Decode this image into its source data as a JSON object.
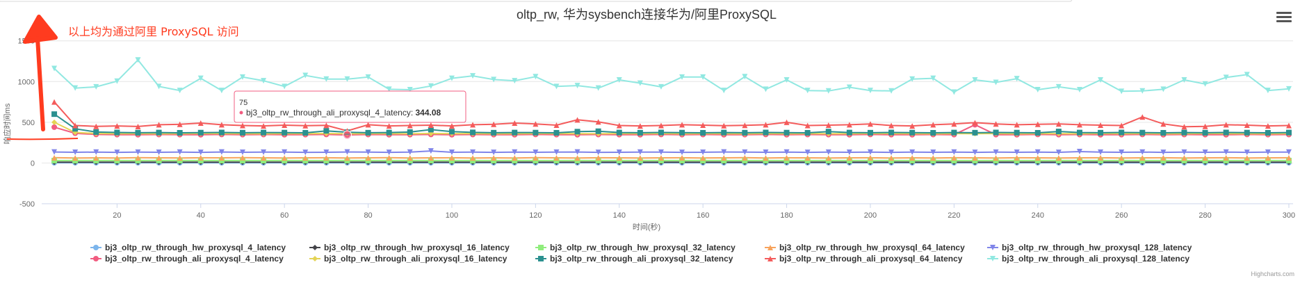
{
  "page": {
    "annotation_text": "以上均为通过阿里 ProxySQL 访问",
    "credits": "Highcharts.com",
    "menu_icon": "hamburger-menu-icon"
  },
  "chart_data": {
    "type": "line",
    "title": "oltp_rw, 华为sysbench连接华为/阿里ProxySQL",
    "xlabel": "时间(秒)",
    "ylabel": "响应时间ms",
    "xlim": [
      2,
      301
    ],
    "ylim": [
      -500,
      1600
    ],
    "x_ticks": [
      "20",
      "40",
      "60",
      "80",
      "100",
      "120",
      "140",
      "160",
      "180",
      "200",
      "220",
      "240",
      "260",
      "280",
      "300"
    ],
    "y_ticks": [
      "-500",
      "0",
      "500",
      "1000",
      "1500"
    ],
    "grid": true,
    "legend_position": "bottom",
    "tooltip": {
      "x_label": "75",
      "series": "bj3_oltp_rw_through_ali_proxysql_4_latency",
      "value_text": "344.08",
      "x": 75,
      "y": 344.08,
      "color": "#f15c80"
    },
    "x": [
      5,
      10,
      15,
      20,
      25,
      30,
      35,
      40,
      45,
      50,
      55,
      60,
      65,
      70,
      75,
      80,
      85,
      90,
      95,
      100,
      105,
      110,
      115,
      120,
      125,
      130,
      135,
      140,
      145,
      150,
      155,
      160,
      165,
      170,
      175,
      180,
      185,
      190,
      195,
      200,
      205,
      210,
      215,
      220,
      225,
      230,
      235,
      240,
      245,
      250,
      255,
      260,
      265,
      270,
      275,
      280,
      285,
      290,
      295,
      300
    ],
    "series": [
      {
        "name": "bj3_oltp_rw_through_hw_proxysql_4_latency",
        "color": "#7cb5ec",
        "marker": "circle",
        "values": [
          3,
          3,
          3,
          3,
          3,
          3,
          3,
          3,
          3,
          3,
          3,
          3,
          3,
          3,
          3,
          3,
          3,
          3,
          3,
          3,
          3,
          3,
          3,
          3,
          3,
          3,
          3,
          3,
          3,
          3,
          3,
          3,
          3,
          3,
          3,
          3,
          3,
          3,
          3,
          3,
          3,
          3,
          3,
          3,
          3,
          3,
          3,
          3,
          3,
          3,
          3,
          3,
          3,
          3,
          3,
          3,
          3,
          3,
          3,
          3
        ]
      },
      {
        "name": "bj3_oltp_rw_through_hw_proxysql_16_latency",
        "color": "#434348",
        "marker": "diamond",
        "values": [
          10,
          10,
          10,
          10,
          10,
          10,
          10,
          10,
          10,
          10,
          10,
          10,
          10,
          10,
          10,
          10,
          10,
          10,
          10,
          10,
          10,
          10,
          10,
          10,
          10,
          10,
          10,
          10,
          10,
          10,
          10,
          10,
          10,
          10,
          10,
          10,
          10,
          10,
          10,
          10,
          10,
          10,
          10,
          10,
          10,
          10,
          10,
          10,
          10,
          10,
          10,
          10,
          10,
          10,
          10,
          10,
          10,
          10,
          10,
          10
        ]
      },
      {
        "name": "bj3_oltp_rw_through_hw_proxysql_32_latency",
        "color": "#90ed7d",
        "marker": "square",
        "values": [
          30,
          30,
          30,
          30,
          30,
          30,
          30,
          30,
          30,
          30,
          30,
          30,
          30,
          30,
          30,
          30,
          30,
          30,
          30,
          30,
          30,
          30,
          30,
          30,
          30,
          30,
          30,
          30,
          30,
          30,
          30,
          30,
          30,
          30,
          30,
          30,
          30,
          30,
          30,
          30,
          30,
          30,
          30,
          30,
          30,
          30,
          30,
          30,
          30,
          30,
          30,
          30,
          30,
          30,
          30,
          30,
          30,
          30,
          30,
          30
        ]
      },
      {
        "name": "bj3_oltp_rw_through_hw_proxysql_64_latency",
        "color": "#f7a35c",
        "marker": "triangle",
        "values": [
          65,
          62,
          63,
          62,
          65,
          63,
          62,
          64,
          63,
          66,
          63,
          62,
          63,
          64,
          62,
          63,
          65,
          62,
          63,
          64,
          62,
          63,
          62,
          65,
          63,
          62,
          64,
          63,
          62,
          63,
          64,
          62,
          63,
          65,
          62,
          64,
          63,
          62,
          63,
          64,
          62,
          63,
          62,
          64,
          63,
          62,
          64,
          63,
          62,
          63,
          64,
          62,
          63,
          64,
          62,
          63,
          64,
          62,
          63,
          64
        ]
      },
      {
        "name": "bj3_oltp_rw_through_hw_proxysql_128_latency",
        "color": "#8085e9",
        "marker": "triangle-down",
        "values": [
          135,
          132,
          134,
          131,
          133,
          132,
          134,
          131,
          135,
          132,
          133,
          134,
          131,
          132,
          135,
          133,
          131,
          134,
          148,
          132,
          133,
          131,
          134,
          132,
          133,
          135,
          131,
          132,
          134,
          133,
          131,
          132,
          135,
          133,
          132,
          134,
          131,
          133,
          132,
          134,
          131,
          133,
          132,
          134,
          131,
          133,
          132,
          134,
          131,
          140,
          133,
          132,
          134,
          131,
          133,
          132,
          134,
          131,
          133,
          134
        ]
      },
      {
        "name": "bj3_oltp_rw_through_ali_proxysql_4_latency",
        "color": "#f15c80",
        "marker": "circle",
        "values": [
          440,
          365,
          350,
          348,
          347,
          349,
          348,
          347,
          350,
          348,
          349,
          347,
          348,
          350,
          344,
          349,
          347,
          348,
          350,
          347,
          349,
          348,
          347,
          350,
          348,
          347,
          349,
          348,
          347,
          350,
          348,
          349,
          347,
          348,
          350,
          347,
          349,
          348,
          347,
          350,
          348,
          347,
          349,
          348,
          470,
          348,
          347,
          350,
          348,
          349,
          347,
          348,
          350,
          347,
          349,
          348,
          347,
          350,
          348,
          349
        ]
      },
      {
        "name": "bj3_oltp_rw_through_ali_proxysql_16_latency",
        "color": "#e4d354",
        "marker": "diamond",
        "values": [
          500,
          375,
          362,
          360,
          361,
          359,
          360,
          362,
          361,
          360,
          359,
          361,
          360,
          362,
          359,
          361,
          360,
          359,
          362,
          360,
          361,
          359,
          360,
          362,
          361,
          360,
          359,
          361,
          360,
          362,
          359,
          361,
          360,
          359,
          362,
          360,
          361,
          359,
          360,
          362,
          361,
          360,
          359,
          361,
          360,
          362,
          359,
          361,
          360,
          359,
          362,
          360,
          361,
          359,
          360,
          362,
          361,
          360,
          359,
          361
        ]
      },
      {
        "name": "bj3_oltp_rw_through_ali_proxysql_32_latency",
        "color": "#2b908f",
        "marker": "square",
        "values": [
          600,
          420,
          380,
          375,
          372,
          374,
          371,
          373,
          375,
          372,
          374,
          373,
          371,
          395,
          378,
          372,
          374,
          380,
          410,
          385,
          376,
          372,
          374,
          373,
          371,
          385,
          390,
          374,
          372,
          375,
          373,
          371,
          374,
          372,
          375,
          373,
          371,
          386,
          374,
          372,
          375,
          373,
          371,
          374,
          372,
          375,
          373,
          371,
          387,
          374,
          372,
          375,
          373,
          371,
          374,
          372,
          375,
          373,
          371,
          374
        ]
      },
      {
        "name": "bj3_oltp_rw_through_ali_proxysql_64_latency",
        "color": "#f45b5b",
        "marker": "triangle",
        "values": [
          750,
          460,
          450,
          455,
          448,
          470,
          475,
          490,
          470,
          460,
          455,
          465,
          458,
          462,
          395,
          470,
          455,
          460,
          465,
          455,
          470,
          475,
          490,
          480,
          465,
          530,
          505,
          460,
          455,
          460,
          470,
          465,
          458,
          462,
          470,
          500,
          460,
          465,
          470,
          480,
          460,
          455,
          470,
          480,
          495,
          480,
          470,
          475,
          480,
          470,
          465,
          460,
          565,
          480,
          445,
          450,
          470,
          465,
          455,
          460
        ]
      },
      {
        "name": "bj3_oltp_rw_through_ali_proxysql_128_latency",
        "color": "#91e8e1",
        "marker": "triangle-down",
        "values": [
          1160,
          920,
          935,
          1005,
          1265,
          940,
          890,
          1040,
          890,
          1055,
          1010,
          940,
          1075,
          1030,
          1030,
          1055,
          905,
          900,
          945,
          1040,
          1070,
          1025,
          1010,
          1060,
          940,
          950,
          920,
          1020,
          980,
          935,
          1055,
          1055,
          890,
          1060,
          905,
          1020,
          890,
          885,
          930,
          890,
          885,
          1030,
          1040,
          870,
          1020,
          990,
          1035,
          900,
          935,
          900,
          1020,
          880,
          885,
          905,
          1020,
          970,
          1050,
          1085,
          890,
          910
        ]
      }
    ]
  }
}
